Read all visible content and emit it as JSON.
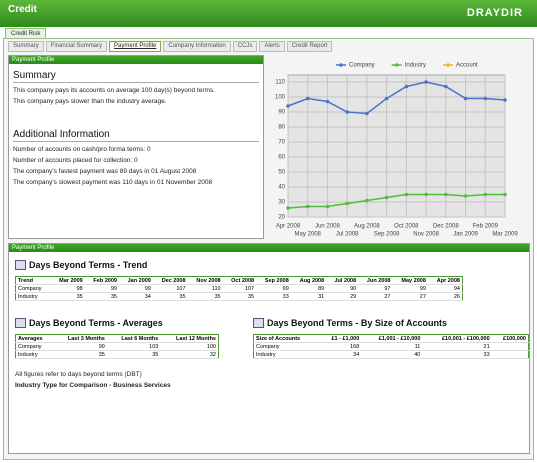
{
  "header": {
    "logo": "Credit",
    "brand": "DRAYDIR"
  },
  "main_tab": "Credit Risk",
  "tabs": [
    "Summary",
    "Financial Summary",
    "Payment Profile",
    "Company Information",
    "CCJs",
    "Alerts",
    "Credit Report"
  ],
  "active_tab": 2,
  "summary_panel": {
    "header": "Payment Profile",
    "summary_title": "Summary",
    "summary_lines": [
      "This company pays its accounts on average 100 day(s) beyond terms.",
      "This company pays slower than the industry average."
    ],
    "additional_title": "Additional Information",
    "additional_lines": [
      "Number of accounts on cash/pro forma terms: 0",
      "Number of accounts placed for collection: 0",
      "The company's fastest payment was 89 days in 01 August 2008",
      "The company's slowest payment was 110 days in 01 November 2008"
    ]
  },
  "chart_data": {
    "type": "line",
    "categories": [
      "Apr 2008",
      "May 2008",
      "Jun 2008",
      "Jul 2008",
      "Aug 2008",
      "Sep 2008",
      "Oct 2008",
      "Nov 2008",
      "Dec 2008",
      "Jan 2009",
      "Feb 2009",
      "Mar 2009"
    ],
    "series": [
      {
        "name": "Company",
        "color": "#4a74c9",
        "values": [
          94,
          99,
          97,
          90,
          89,
          99,
          107,
          110,
          107,
          99,
          99,
          98
        ]
      },
      {
        "name": "Industry",
        "color": "#4fbf3a",
        "values": [
          26,
          27,
          27,
          29,
          31,
          33,
          35,
          35,
          35,
          34,
          35,
          35
        ]
      },
      {
        "name": "Account",
        "color": "#f2b818",
        "values": [
          null,
          null,
          null,
          null,
          null,
          null,
          null,
          null,
          null,
          null,
          null,
          null
        ]
      }
    ],
    "ylim": [
      20,
      110
    ],
    "yticks": [
      20,
      30,
      40,
      50,
      60,
      70,
      80,
      90,
      100,
      110
    ],
    "grid": true,
    "legend": "top"
  },
  "detail_panel": {
    "header": "Payment Profile",
    "trend": {
      "title": "Days Beyond Terms - Trend",
      "rows": [
        [
          "Trend",
          "Mar 2009",
          "Feb 2009",
          "Jan 2009",
          "Dec 2008",
          "Nov 2008",
          "Oct 2008",
          "Sep 2008",
          "Aug 2008",
          "Jul 2008",
          "Jun 2008",
          "May 2008",
          "Apr 2008"
        ],
        [
          "Company",
          98,
          99,
          99,
          107,
          110,
          107,
          99,
          89,
          90,
          97,
          99,
          94
        ],
        [
          "Industry",
          35,
          35,
          34,
          35,
          35,
          35,
          33,
          31,
          29,
          27,
          27,
          26
        ]
      ]
    },
    "averages": {
      "title": "Days Beyond Terms - Averages",
      "rows": [
        [
          "Averages",
          "Last 3 Months",
          "Last 6 Months",
          "Last 12 Months"
        ],
        [
          "Company",
          99,
          103,
          100
        ],
        [
          "Industry",
          35,
          35,
          32
        ]
      ]
    },
    "by_size": {
      "title": "Days Beyond Terms - By Size of Accounts",
      "rows": [
        [
          "Size of Accounts",
          "£1 - £1,000",
          "£1,001 - £10,000",
          "£10,001 - £100,000",
          "£100,000"
        ],
        [
          "Company",
          168,
          11,
          21,
          null
        ],
        [
          "Industry",
          34,
          40,
          33,
          null
        ]
      ]
    },
    "note": "All figures refer to days beyond terms (DBT)",
    "industry": "Industry Type for Comparison - Business Services"
  }
}
